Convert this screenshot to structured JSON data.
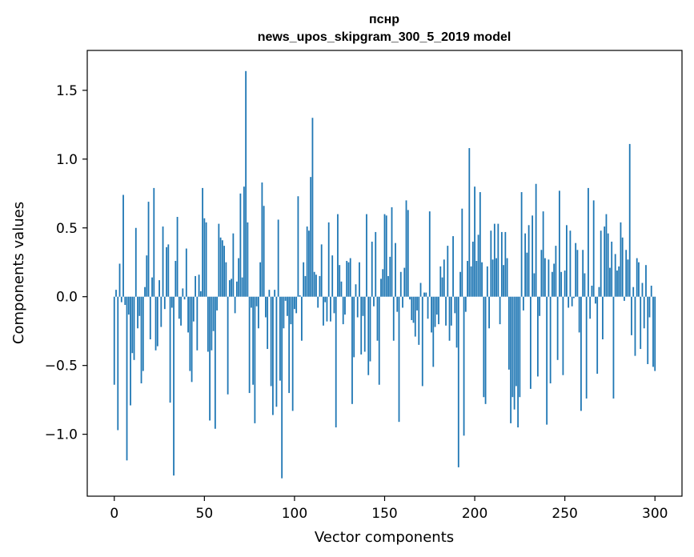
{
  "chart_data": {
    "type": "bar",
    "title_line1": "пснр",
    "title_line2": "news_upos_skipgram_300_5_2019 model",
    "xlabel": "Vector components",
    "ylabel": "Components values",
    "xlim": [
      -15,
      315
    ],
    "ylim": [
      -1.45,
      1.79
    ],
    "xticks": [
      0,
      50,
      100,
      150,
      200,
      250,
      300
    ],
    "xtick_labels": [
      "0",
      "50",
      "100",
      "150",
      "200",
      "250",
      "300"
    ],
    "yticks": [
      -1.0,
      -0.5,
      0.0,
      0.5,
      1.0,
      1.5
    ],
    "ytick_labels": [
      "−1.0",
      "−0.5",
      "0.0",
      "0.5",
      "1.0",
      "1.5"
    ],
    "bar_color": "#1f77b4",
    "grid": false,
    "values": [
      -0.64,
      0.05,
      -0.97,
      0.24,
      -0.04,
      0.74,
      -0.06,
      -1.19,
      -0.13,
      -0.79,
      -0.41,
      -0.46,
      0.5,
      -0.23,
      -0.14,
      -0.63,
      -0.54,
      0.07,
      0.3,
      0.69,
      -0.31,
      0.14,
      0.79,
      -0.39,
      -0.36,
      0.12,
      -0.22,
      0.51,
      -0.09,
      0.36,
      0.38,
      -0.77,
      -0.08,
      -1.3,
      0.26,
      0.58,
      -0.16,
      -0.21,
      0.06,
      -0.02,
      0.35,
      -0.26,
      -0.54,
      -0.62,
      -0.18,
      0.15,
      -0.39,
      0.16,
      0.04,
      0.79,
      0.57,
      0.54,
      -0.4,
      -0.9,
      -0.39,
      -0.25,
      -0.96,
      -0.1,
      0.53,
      0.43,
      0.41,
      0.37,
      0.25,
      -0.71,
      0.12,
      0.13,
      0.46,
      -0.12,
      0.11,
      0.28,
      0.75,
      0.14,
      0.8,
      1.64,
      0.54,
      -0.7,
      -0.08,
      -0.64,
      -0.92,
      -0.07,
      -0.23,
      0.25,
      0.83,
      0.66,
      -0.15,
      -0.38,
      0.05,
      -0.65,
      -0.86,
      0.05,
      -0.8,
      0.56,
      -0.61,
      -1.32,
      -0.23,
      -0.03,
      -0.14,
      -0.7,
      -0.2,
      -0.83,
      -0.09,
      -0.12,
      0.73,
      0.01,
      -0.32,
      0.25,
      0.15,
      0.51,
      0.48,
      0.87,
      1.3,
      0.18,
      0.16,
      -0.08,
      0.15,
      0.38,
      -0.21,
      -0.04,
      -0.18,
      0.54,
      -0.18,
      0.3,
      -0.12,
      -0.95,
      0.6,
      0.23,
      0.11,
      -0.2,
      -0.13,
      0.26,
      0.25,
      0.28,
      -0.78,
      -0.44,
      0.09,
      -0.15,
      0.25,
      -0.42,
      -0.14,
      -0.4,
      0.6,
      -0.57,
      -0.47,
      0.4,
      -0.07,
      0.47,
      -0.32,
      -0.64,
      0.13,
      0.2,
      0.6,
      0.59,
      0.15,
      0.29,
      0.65,
      -0.32,
      0.39,
      -0.11,
      -0.91,
      0.18,
      -0.08,
      0.21,
      0.7,
      0.63,
      -0.02,
      -0.17,
      -0.19,
      -0.29,
      -0.1,
      -0.35,
      0.1,
      -0.65,
      0.03,
      0.03,
      -0.16,
      0.62,
      -0.26,
      -0.51,
      -0.22,
      -0.13,
      -0.2,
      0.22,
      0.14,
      0.27,
      -0.21,
      0.37,
      -0.32,
      -0.21,
      0.44,
      -0.12,
      -0.37,
      -1.24,
      0.18,
      0.64,
      -1.01,
      -0.11,
      0.26,
      1.08,
      0.22,
      0.4,
      0.8,
      0.26,
      0.45,
      0.76,
      0.25,
      -0.73,
      -0.78,
      0.22,
      -0.23,
      0.48,
      0.27,
      0.53,
      0.28,
      0.53,
      -0.2,
      0.47,
      0.23,
      0.47,
      0.28,
      -0.53,
      -0.92,
      -0.73,
      -0.82,
      -0.65,
      -0.95,
      -0.73,
      0.76,
      -0.1,
      0.46,
      0.32,
      0.52,
      -0.67,
      0.59,
      0.17,
      0.82,
      -0.58,
      -0.14,
      0.34,
      0.62,
      0.28,
      -0.93,
      0.27,
      -0.63,
      0.18,
      0.24,
      0.37,
      -0.46,
      0.77,
      0.18,
      -0.57,
      0.19,
      0.52,
      -0.08,
      0.48,
      -0.07,
      -0.01,
      0.39,
      0.34,
      -0.26,
      -0.83,
      0.34,
      0.17,
      -0.74,
      0.79,
      -0.16,
      0.08,
      0.7,
      -0.05,
      -0.56,
      0.07,
      0.48,
      -0.31,
      0.51,
      0.6,
      0.46,
      0.21,
      0.4,
      -0.74,
      0.31,
      0.19,
      0.22,
      0.54,
      0.43,
      -0.03,
      0.34,
      0.27,
      1.11,
      -0.28,
      0.07,
      -0.43,
      0.28,
      0.25,
      -0.38,
      0.1,
      -0.23,
      0.23,
      -0.49,
      -0.15,
      0.08,
      -0.51,
      -0.54
    ]
  }
}
